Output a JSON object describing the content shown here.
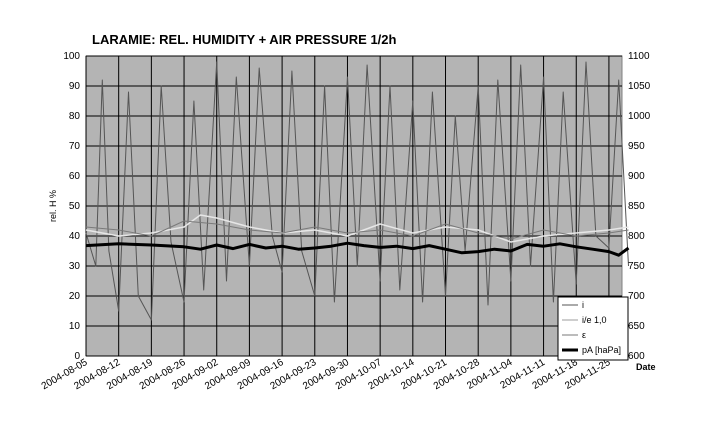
{
  "chart_data": {
    "type": "line",
    "title": "LARAMIE: REL. HUMIDITY + AIR PRESSURE 1/2h",
    "ylabel": "rel. H %",
    "xlabel": "Date",
    "ylim": [
      0,
      100
    ],
    "y2lim": [
      600,
      1100
    ],
    "yticks": [
      "0",
      "10",
      "20",
      "30",
      "40",
      "50",
      "60",
      "70",
      "80",
      "90",
      "100"
    ],
    "y2ticks": [
      "600",
      "650",
      "700",
      "750",
      "800",
      "850",
      "900",
      "950",
      "1000",
      "1050",
      "1100"
    ],
    "categories": [
      "2004-08-05",
      "2004-08-12",
      "2004-08-19",
      "2004-08-26",
      "2004-09-02",
      "2004-09-09",
      "2004-09-16",
      "2004-09-23",
      "2004-09-30",
      "2004-10-07",
      "2004-10-14",
      "2004-10-21",
      "2004-10-28",
      "2004-11-04",
      "2004-11-11",
      "2004-11-18",
      "2004-11-25"
    ],
    "grid": true,
    "legend_position": "bottom-right",
    "colors": {
      "plot_bg": "#b4b4b4",
      "grid": "#000000",
      "humidity": "#555555",
      "ratio": "#e6e6e6",
      "epsilon": "#7a7a7a",
      "pressure": "#000000"
    },
    "series": [
      {
        "name": "i",
        "axis": "left",
        "points": [
          [
            0,
            41
          ],
          [
            0.3,
            30
          ],
          [
            0.5,
            92
          ],
          [
            0.7,
            35
          ],
          [
            1,
            15
          ],
          [
            1.3,
            88
          ],
          [
            1.6,
            20
          ],
          [
            2,
            12
          ],
          [
            2.3,
            90
          ],
          [
            2.6,
            38
          ],
          [
            3,
            18
          ],
          [
            3.3,
            85
          ],
          [
            3.6,
            22
          ],
          [
            4,
            98
          ],
          [
            4.3,
            25
          ],
          [
            4.6,
            93
          ],
          [
            5,
            30
          ],
          [
            5.3,
            96
          ],
          [
            5.7,
            40
          ],
          [
            6,
            28
          ],
          [
            6.3,
            95
          ],
          [
            6.6,
            35
          ],
          [
            7,
            20
          ],
          [
            7.3,
            90
          ],
          [
            7.6,
            18
          ],
          [
            8,
            93
          ],
          [
            8.3,
            30
          ],
          [
            8.6,
            97
          ],
          [
            9,
            25
          ],
          [
            9.3,
            90
          ],
          [
            9.6,
            22
          ],
          [
            10,
            85
          ],
          [
            10.3,
            18
          ],
          [
            10.6,
            88
          ],
          [
            11,
            20
          ],
          [
            11.3,
            80
          ],
          [
            11.6,
            35
          ],
          [
            12,
            90
          ],
          [
            12.3,
            17
          ],
          [
            12.6,
            92
          ],
          [
            13,
            25
          ],
          [
            13.3,
            97
          ],
          [
            13.6,
            30
          ],
          [
            14,
            93
          ],
          [
            14.3,
            18
          ],
          [
            14.6,
            88
          ],
          [
            15,
            24
          ],
          [
            15.3,
            98
          ],
          [
            15.6,
            40
          ],
          [
            16,
            36
          ],
          [
            16.3,
            92
          ],
          [
            16.6,
            30
          ]
        ]
      },
      {
        "name": "i/e 1,0",
        "axis": "left",
        "points": [
          [
            0,
            42
          ],
          [
            1,
            40
          ],
          [
            2,
            41
          ],
          [
            3,
            43
          ],
          [
            3.5,
            47
          ],
          [
            4,
            46
          ],
          [
            5,
            43
          ],
          [
            6,
            41
          ],
          [
            7,
            42
          ],
          [
            8,
            40
          ],
          [
            9,
            44
          ],
          [
            10,
            41
          ],
          [
            11,
            43
          ],
          [
            12,
            42
          ],
          [
            13,
            38
          ],
          [
            14,
            40
          ],
          [
            15,
            41
          ],
          [
            16,
            42
          ],
          [
            16.6,
            43
          ]
        ]
      },
      {
        "name": "ε",
        "axis": "left",
        "points": [
          [
            0,
            43
          ],
          [
            1,
            42
          ],
          [
            2,
            40
          ],
          [
            3,
            45
          ],
          [
            4,
            44
          ],
          [
            5,
            42
          ],
          [
            6,
            41
          ],
          [
            7,
            43
          ],
          [
            8,
            41
          ],
          [
            9,
            42
          ],
          [
            10,
            40
          ],
          [
            11,
            44
          ],
          [
            12,
            41
          ],
          [
            13,
            39
          ],
          [
            14,
            42
          ],
          [
            15,
            40
          ],
          [
            16,
            41
          ],
          [
            16.6,
            42
          ]
        ]
      },
      {
        "name": "pA [haPa]",
        "axis": "right",
        "points": [
          [
            0,
            784
          ],
          [
            1,
            787
          ],
          [
            2,
            785
          ],
          [
            3,
            782
          ],
          [
            3.5,
            778
          ],
          [
            4,
            785
          ],
          [
            4.5,
            779
          ],
          [
            5,
            786
          ],
          [
            5.5,
            780
          ],
          [
            6,
            783
          ],
          [
            6.5,
            778
          ],
          [
            7,
            780
          ],
          [
            7.5,
            783
          ],
          [
            8,
            788
          ],
          [
            8.5,
            784
          ],
          [
            9,
            781
          ],
          [
            9.5,
            783
          ],
          [
            10,
            779
          ],
          [
            10.5,
            784
          ],
          [
            11,
            778
          ],
          [
            11.5,
            772
          ],
          [
            12,
            774
          ],
          [
            12.5,
            778
          ],
          [
            13,
            775
          ],
          [
            13.5,
            786
          ],
          [
            14,
            783
          ],
          [
            14.5,
            787
          ],
          [
            15,
            782
          ],
          [
            15.5,
            778
          ],
          [
            16,
            774
          ],
          [
            16.3,
            768
          ],
          [
            16.6,
            780
          ]
        ]
      }
    ]
  }
}
